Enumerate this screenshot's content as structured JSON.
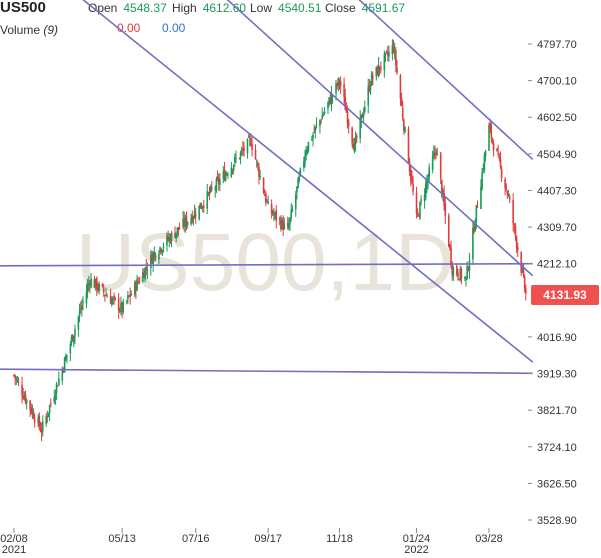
{
  "header": {
    "symbol": "US500",
    "open_label": "Open",
    "open_value": "4548.37",
    "high_label": "High",
    "high_value": "4612.60",
    "low_label": "Low",
    "low_value": "4540.51",
    "close_label": "Close",
    "close_value": "4591.67",
    "volume_label": "Volume",
    "volume_param": "(9)",
    "volume_value_1": "0.00",
    "volume_value_2": "0.00"
  },
  "watermark": "US500,1D",
  "last_price": "4131.93",
  "colors": {
    "up": "#1a9a5a",
    "down": "#e23b3b",
    "trendline": "#7070c0",
    "price_tag": "#f05050"
  },
  "chart_data": {
    "type": "candlestick",
    "title": "",
    "xlabel": "",
    "ylabel": "",
    "y_tick_labels": [
      "4797.70",
      "4700.10",
      "4602.50",
      "4504.90",
      "4407.30",
      "4309.70",
      "4212.10",
      "4016.90",
      "3919.30",
      "3821.70",
      "3724.10",
      "3626.50",
      "3528.90"
    ],
    "x_tick_labels": [
      "02/08",
      "05/13",
      "07/16",
      "09/17",
      "11/18",
      "01/24",
      "03/28"
    ],
    "x_year_labels": [
      "2021",
      "2022"
    ],
    "ylim": [
      3510,
      4870
    ],
    "grid": false,
    "legend": "none",
    "price_path": [
      {
        "date": "2021-02-08",
        "close": 3915
      },
      {
        "date": "2021-03-04",
        "close": 3768
      },
      {
        "date": "2021-03-25",
        "close": 3960
      },
      {
        "date": "2021-04-15",
        "close": 4170
      },
      {
        "date": "2021-05-13",
        "close": 4090
      },
      {
        "date": "2021-06-10",
        "close": 4240
      },
      {
        "date": "2021-07-16",
        "close": 4350
      },
      {
        "date": "2021-08-10",
        "close": 4450
      },
      {
        "date": "2021-09-02",
        "close": 4540
      },
      {
        "date": "2021-09-17",
        "close": 4360
      },
      {
        "date": "2021-10-04",
        "close": 4300
      },
      {
        "date": "2021-10-20",
        "close": 4520
      },
      {
        "date": "2021-11-18",
        "close": 4700
      },
      {
        "date": "2021-12-01",
        "close": 4520
      },
      {
        "date": "2021-12-15",
        "close": 4700
      },
      {
        "date": "2022-01-04",
        "close": 4790
      },
      {
        "date": "2022-01-24",
        "close": 4330
      },
      {
        "date": "2022-02-10",
        "close": 4520
      },
      {
        "date": "2022-02-24",
        "close": 4200
      },
      {
        "date": "2022-03-08",
        "close": 4170
      },
      {
        "date": "2022-03-28",
        "close": 4575
      },
      {
        "date": "2022-04-14",
        "close": 4390
      },
      {
        "date": "2022-04-29",
        "close": 4131.93
      }
    ],
    "trendlines": [
      {
        "x1": "2020-12-15",
        "y1": 5200,
        "x2": "2022-05-05",
        "y2": 3950
      },
      {
        "x1": "2021-05-20",
        "y1": 5150,
        "x2": "2022-05-05",
        "y2": 4180
      },
      {
        "x1": "2021-10-15",
        "y1": 5060,
        "x2": "2022-05-05",
        "y2": 4490
      },
      {
        "x1": "2020-12-15",
        "y1": 4206,
        "x2": "2022-05-05",
        "y2": 4212
      },
      {
        "x1": "2020-12-15",
        "y1": 3932,
        "x2": "2022-05-05",
        "y2": 3920
      }
    ]
  }
}
